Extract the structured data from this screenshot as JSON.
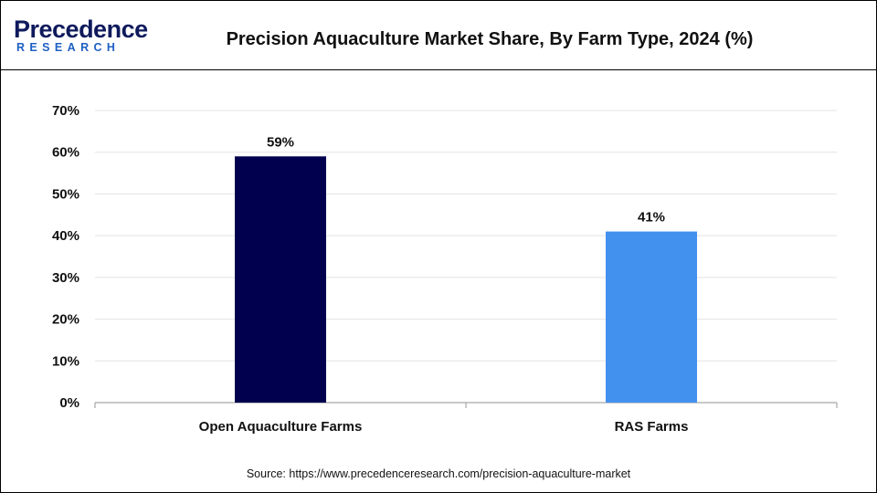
{
  "brand": {
    "logo_main": "Precedence",
    "logo_sub": "RESEARCH",
    "primary_color": "#0e1a5c",
    "accent_color": "#1e5fc4"
  },
  "header": {
    "title": "Precision Aquaculture Market Share, By Farm Type, 2024 (%)"
  },
  "footer": {
    "source": "Source: https://www.precedenceresearch.com/precision-aquaculture-market"
  },
  "chart_data": {
    "type": "bar",
    "title": "Precision Aquaculture Market Share, By Farm Type, 2024 (%)",
    "categories": [
      "Open Aquaculture Farms",
      "RAS Farms"
    ],
    "values": [
      59,
      41
    ],
    "value_labels": [
      "59%",
      "41%"
    ],
    "colors": [
      "#00004f",
      "#4391ee"
    ],
    "xlabel": "",
    "ylabel": "",
    "ylim": [
      0,
      70
    ],
    "yticks": [
      0,
      10,
      20,
      30,
      40,
      50,
      60,
      70
    ],
    "ytick_labels": [
      "0%",
      "10%",
      "20%",
      "30%",
      "40%",
      "50%",
      "60%",
      "70%"
    ],
    "grid": true,
    "legend": "none"
  }
}
